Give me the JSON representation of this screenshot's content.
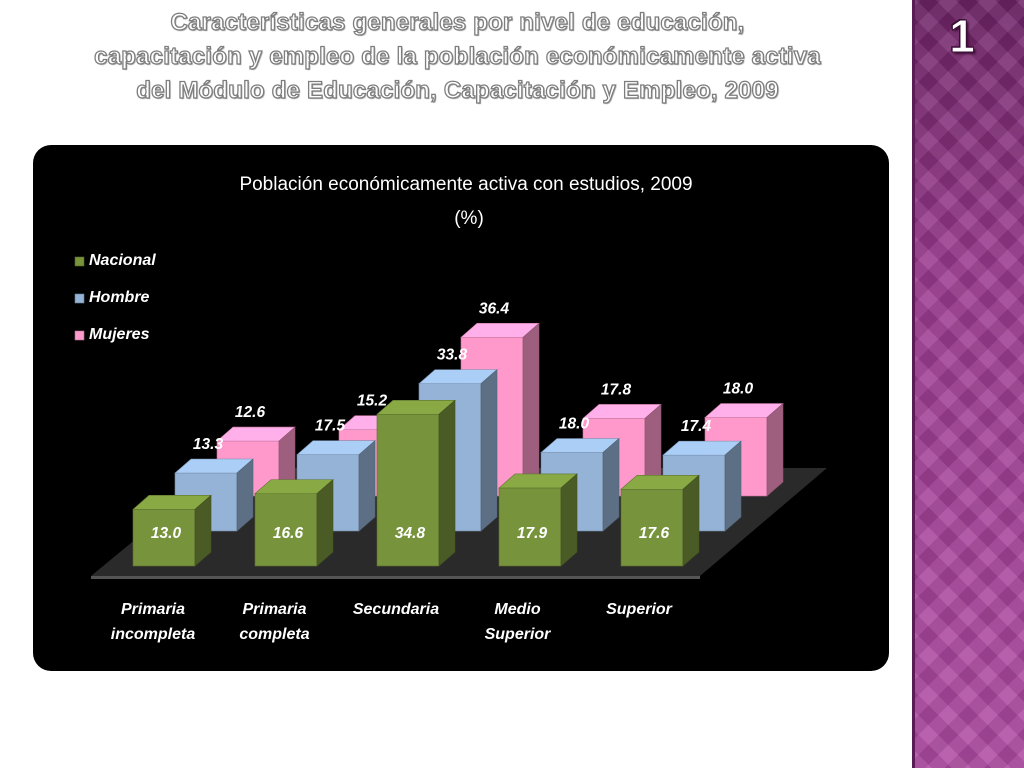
{
  "slide": {
    "title_lines": [
      "Características generales por nivel de educación,",
      "capacitación y empleo de la población económicamente activa",
      "del Módulo de Educación, Capacitación y Empleo, 2009"
    ],
    "number": "1"
  },
  "colors": {
    "nacional": "#77933c",
    "hombre": "#95b3d7",
    "mujeres": "#ff99cc",
    "chart_background": "#000000",
    "side_panel": "#9a3d8e"
  },
  "chart_data": {
    "type": "bar",
    "title": "Población económicamente activa con estudios, 2009",
    "subtitle": "(%)",
    "categories": [
      [
        "Primaria",
        "incompleta"
      ],
      [
        "Primaria",
        "completa"
      ],
      [
        "Secundaria"
      ],
      [
        "Medio",
        "Superior"
      ],
      [
        "Superior"
      ]
    ],
    "series": [
      {
        "name": "Nacional",
        "values": [
          13.0,
          16.6,
          34.8,
          17.9,
          17.6
        ],
        "color": "#77933c"
      },
      {
        "name": "Hombre",
        "values": [
          13.3,
          17.5,
          33.8,
          18.0,
          17.4
        ],
        "color": "#95b3d7"
      },
      {
        "name": "Mujeres",
        "values": [
          12.6,
          15.2,
          36.4,
          17.8,
          18.0
        ],
        "color": "#ff99cc"
      }
    ],
    "legend_position": "top-left",
    "grid": false,
    "style": "3d-clustered-depth"
  }
}
